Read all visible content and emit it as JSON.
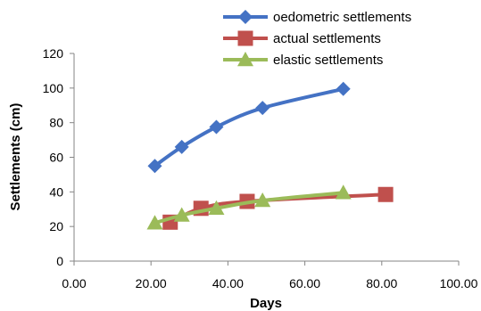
{
  "chart_data": {
    "type": "line",
    "title": "",
    "xlabel": "Days",
    "ylabel": "Settlements (cm)",
    "xlim": [
      0,
      100
    ],
    "ylim": [
      0,
      120
    ],
    "x_ticks": [
      "0.00",
      "20.00",
      "40.00",
      "60.00",
      "80.00",
      "100.00"
    ],
    "y_ticks": [
      "0",
      "20",
      "40",
      "60",
      "80",
      "100",
      "120"
    ],
    "grid": false,
    "legend_position": "top-right",
    "series": [
      {
        "name": "oedometric settlements",
        "color": "#4472C4",
        "marker": "diamond",
        "x": [
          21,
          28,
          37,
          49,
          70
        ],
        "y": [
          55,
          66,
          77.5,
          88.5,
          99.5
        ]
      },
      {
        "name": "actual settlements",
        "color": "#C0504D",
        "marker": "square",
        "x": [
          25,
          33,
          45,
          81
        ],
        "y": [
          22.5,
          30.5,
          34.5,
          38.5
        ]
      },
      {
        "name": "elastic settlements",
        "color": "#9BBB59",
        "marker": "triangle",
        "x": [
          21,
          28,
          37,
          49,
          70
        ],
        "y": [
          22,
          26.5,
          30.5,
          35,
          39.5
        ]
      }
    ]
  }
}
